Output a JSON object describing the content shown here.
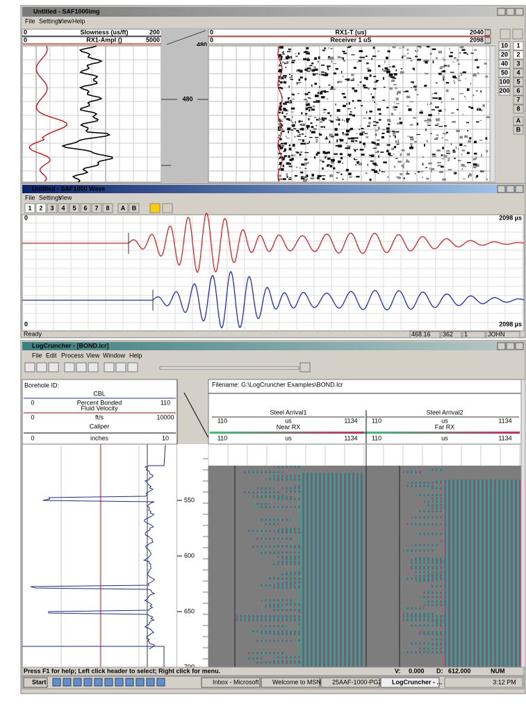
{
  "saf_img": {
    "title": "Untitled - SAF1000img",
    "menu": [
      "File",
      "Settings",
      "View",
      "Help"
    ],
    "headers": {
      "slowness": [
        "0",
        "Slowness (us/ft)",
        "200"
      ],
      "ampl": [
        "0",
        "RX1-Ampl ()",
        "5000"
      ],
      "depth_top": "480",
      "rx1t": [
        "0",
        "RX1-T (us)",
        "2040"
      ],
      "receiver": [
        "0",
        "Receiver 1 uS",
        "2098"
      ]
    },
    "depth_label": "480",
    "scale_buttons": [
      "10",
      "20",
      "40",
      "50",
      "100",
      "200"
    ],
    "side_buttons": [
      "1",
      "2",
      "3",
      "4",
      "5",
      "6",
      "7",
      "8",
      "A",
      "B"
    ]
  },
  "saf_wave": {
    "title": "Untitled - SAF1000 Wave",
    "menu": [
      "File",
      "Settings",
      "View"
    ],
    "toolbar": [
      "1",
      "2",
      "3",
      "4",
      "5",
      "6",
      "7",
      "8",
      "A",
      "B"
    ],
    "upper": [
      "0",
      "2098 µs"
    ],
    "lower": [
      "0",
      "2098 µs"
    ],
    "status": [
      "Ready",
      "468.16",
      "362",
      "1",
      "JOHN"
    ]
  },
  "logcruncher": {
    "title": "LogCruncher - [BOND.lcr]",
    "menu": [
      "File",
      "Edit",
      "Process",
      "View",
      "Window",
      "Help"
    ],
    "borehole": "Borehole ID:",
    "cbl": {
      "name": "CBL",
      "min": "0",
      "label": "Percent Bonded",
      "max": "110"
    },
    "fluid": {
      "name": "Fluid Velocity",
      "min": "0",
      "label": "ft/s",
      "max": "10000"
    },
    "caliper": {
      "name": "Caliper",
      "min": "0",
      "label": "inches",
      "max": "10"
    },
    "filename": "Filename:  G:\\LogCruncher Examples\\BOND.lcr",
    "arrival1": {
      "name": "Steel Arrival1",
      "min": "110",
      "unit": "us",
      "max": "1134",
      "rx": "Near RX",
      "rmin": "110",
      "runit": "us",
      "rmax": "1134"
    },
    "arrival2": {
      "name": "Steel Arrival2",
      "min": "110",
      "unit": "us",
      "max": "1134",
      "rx": "Far RX",
      "rmin": "110",
      "runit": "us",
      "rmax": "1134"
    },
    "depths": [
      "550",
      "600",
      "650",
      "700"
    ],
    "status": [
      "Press F1 for help; Left click header to select; Right click for menu.",
      "V:",
      "0.000",
      "D:",
      "612.000",
      "NUM"
    ],
    "taskbar": [
      "Start",
      "Inbox - Microsoft ...",
      "Welcome to MSN...",
      "25AAF-1000-PG2...",
      "LogCruncher - ...",
      "3:12 PM"
    ]
  }
}
